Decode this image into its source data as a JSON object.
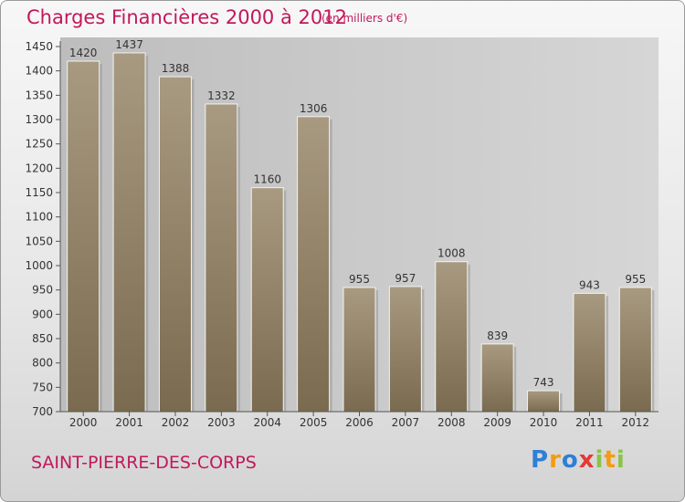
{
  "header": {
    "title": "Charges Financières 2000 à 2012",
    "subtitle": "(en milliers d'€)"
  },
  "footer": {
    "city": "SAINT-PIERRE-DES-CORPS",
    "logo": {
      "letters": [
        "P",
        "r",
        "o",
        "x",
        "i",
        "t",
        "i"
      ],
      "colors": [
        "#2e7fd6",
        "#f39c12",
        "#2e7fd6",
        "#e53935",
        "#8bc34a",
        "#f39c12",
        "#8bc34a"
      ]
    }
  },
  "colors": {
    "bar_top": "#a89a80",
    "bar_bottom": "#7a6a50",
    "accent": "#c2185b"
  },
  "chart_data": {
    "type": "bar",
    "title": "Charges Financières 2000 à 2012",
    "subtitle": "(en milliers d'€)",
    "categories": [
      "2000",
      "2001",
      "2002",
      "2003",
      "2004",
      "2005",
      "2006",
      "2007",
      "2008",
      "2009",
      "2010",
      "2011",
      "2012"
    ],
    "values": [
      1420,
      1437,
      1388,
      1332,
      1160,
      1306,
      955,
      957,
      1008,
      839,
      743,
      943,
      955
    ],
    "ylim": [
      700,
      1450
    ],
    "yticks": [
      700,
      750,
      800,
      850,
      900,
      950,
      1000,
      1050,
      1100,
      1150,
      1200,
      1250,
      1300,
      1350,
      1400,
      1450
    ],
    "grid": false
  }
}
